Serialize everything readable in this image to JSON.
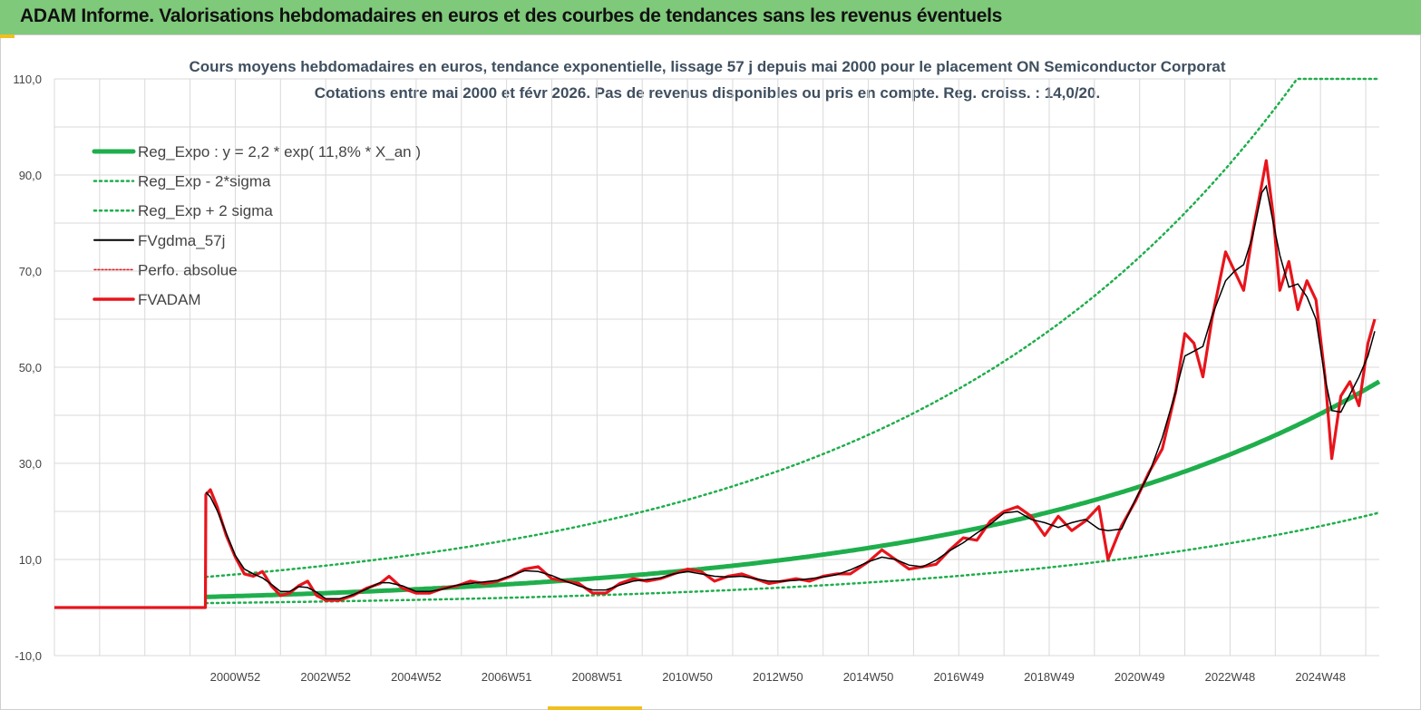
{
  "banner": {
    "title": "ADAM Informe. Valorisations hebdomadaires en euros et des courbes de tendances sans les revenus éventuels"
  },
  "chart_data": {
    "type": "line",
    "title_line1": "Cours moyens hebdomadaires en euros, tendance exponentielle, lissage 57 j depuis mai 2000 pour le placement ON Semiconductor Corporat",
    "title_line2": "Cotations entre mai 2000 et févr 2026. Pas de revenus disponibles ou pris en compte. Reg. croiss. : 14,0/20.",
    "xlabel": "",
    "ylabel": "",
    "ylim": [
      -10,
      110
    ],
    "yticks": [
      "110,0",
      "90,0",
      "70,0",
      "50,0",
      "30,0",
      "10,0",
      "-10,0"
    ],
    "ytick_values": [
      110,
      90,
      70,
      50,
      30,
      10,
      -10
    ],
    "xticks": [
      "2000W52",
      "2002W52",
      "2004W52",
      "2006W51",
      "2008W51",
      "2010W50",
      "2012W50",
      "2014W50",
      "2016W49",
      "2018W49",
      "2020W49",
      "2022W48",
      "2024W48"
    ],
    "xtick_years": [
      2001.0,
      2003.0,
      2005.0,
      2007.0,
      2009.0,
      2011.0,
      2013.0,
      2015.0,
      2017.0,
      2019.0,
      2021.0,
      2023.0,
      2025.0
    ],
    "xlim": [
      1997.0,
      2026.3
    ],
    "data_start": 2000.35,
    "grid": true,
    "legend_position": "top-left",
    "colors": {
      "reg": "#1fae4c",
      "fvadam": "#e8141c",
      "fvgdma": "#000000",
      "perfo": "#e8141c"
    },
    "series": [
      {
        "name": "Reg_Expo : y = 2,2 * exp( 11,8% *  X_an )",
        "style": "thick-green"
      },
      {
        "name": "Reg_Exp - 2*sigma",
        "style": "dotted-green"
      },
      {
        "name": "Reg_Exp + 2 sigma",
        "style": "dotted-green"
      },
      {
        "name": "FVgdma_57j",
        "style": "solid-black"
      },
      {
        "name": "Perfo. absolue",
        "style": "dotted-red"
      },
      {
        "name": "FVADAM",
        "style": "thick-red",
        "points": [
          [
            1997.0,
            0
          ],
          [
            2000.34,
            0
          ],
          [
            2000.35,
            23.5
          ],
          [
            2000.45,
            24.5
          ],
          [
            2000.6,
            21
          ],
          [
            2000.8,
            15
          ],
          [
            2001.0,
            10.5
          ],
          [
            2001.2,
            7
          ],
          [
            2001.4,
            6.5
          ],
          [
            2001.6,
            7.5
          ],
          [
            2001.8,
            4.5
          ],
          [
            2002.0,
            2.5
          ],
          [
            2002.2,
            3
          ],
          [
            2002.4,
            4.5
          ],
          [
            2002.6,
            5.5
          ],
          [
            2002.8,
            2.5
          ],
          [
            2003.0,
            1.5
          ],
          [
            2003.3,
            1.5
          ],
          [
            2003.6,
            2.5
          ],
          [
            2003.9,
            4
          ],
          [
            2004.2,
            5
          ],
          [
            2004.4,
            6.5
          ],
          [
            2004.7,
            4
          ],
          [
            2005.0,
            3
          ],
          [
            2005.3,
            3
          ],
          [
            2005.6,
            4
          ],
          [
            2005.9,
            4.5
          ],
          [
            2006.2,
            5.5
          ],
          [
            2006.5,
            5
          ],
          [
            2006.8,
            5.5
          ],
          [
            2007.1,
            6.5
          ],
          [
            2007.4,
            8
          ],
          [
            2007.7,
            8.5
          ],
          [
            2008.0,
            6
          ],
          [
            2008.3,
            5.5
          ],
          [
            2008.6,
            5
          ],
          [
            2008.9,
            3
          ],
          [
            2009.2,
            3
          ],
          [
            2009.5,
            5
          ],
          [
            2009.8,
            6
          ],
          [
            2010.1,
            5.5
          ],
          [
            2010.4,
            6
          ],
          [
            2010.7,
            7
          ],
          [
            2011.0,
            8
          ],
          [
            2011.3,
            7.5
          ],
          [
            2011.6,
            5.5
          ],
          [
            2011.9,
            6.5
          ],
          [
            2012.2,
            7
          ],
          [
            2012.5,
            6
          ],
          [
            2012.8,
            5
          ],
          [
            2013.1,
            5.5
          ],
          [
            2013.4,
            6
          ],
          [
            2013.7,
            5.5
          ],
          [
            2014.0,
            6.5
          ],
          [
            2014.3,
            7
          ],
          [
            2014.6,
            7
          ],
          [
            2015.0,
            9.5
          ],
          [
            2015.3,
            12
          ],
          [
            2015.6,
            10
          ],
          [
            2015.9,
            8
          ],
          [
            2016.2,
            8.5
          ],
          [
            2016.5,
            9
          ],
          [
            2016.8,
            12
          ],
          [
            2017.1,
            14.5
          ],
          [
            2017.4,
            14
          ],
          [
            2017.7,
            18
          ],
          [
            2018.0,
            20
          ],
          [
            2018.3,
            21
          ],
          [
            2018.6,
            19
          ],
          [
            2018.9,
            15
          ],
          [
            2019.2,
            19
          ],
          [
            2019.5,
            16
          ],
          [
            2019.8,
            18
          ],
          [
            2020.1,
            21
          ],
          [
            2020.3,
            10
          ],
          [
            2020.6,
            17
          ],
          [
            2020.9,
            22
          ],
          [
            2021.2,
            28
          ],
          [
            2021.5,
            33
          ],
          [
            2021.8,
            45
          ],
          [
            2022.0,
            57
          ],
          [
            2022.2,
            55
          ],
          [
            2022.4,
            48
          ],
          [
            2022.6,
            60
          ],
          [
            2022.9,
            74
          ],
          [
            2023.1,
            70
          ],
          [
            2023.3,
            66
          ],
          [
            2023.5,
            78
          ],
          [
            2023.7,
            88
          ],
          [
            2023.8,
            93
          ],
          [
            2023.95,
            82
          ],
          [
            2024.1,
            66
          ],
          [
            2024.3,
            72
          ],
          [
            2024.5,
            62
          ],
          [
            2024.7,
            68
          ],
          [
            2024.9,
            64
          ],
          [
            2025.1,
            48
          ],
          [
            2025.25,
            31
          ],
          [
            2025.45,
            44
          ],
          [
            2025.65,
            47
          ],
          [
            2025.85,
            42
          ],
          [
            2026.05,
            55
          ],
          [
            2026.2,
            60
          ]
        ]
      }
    ]
  }
}
